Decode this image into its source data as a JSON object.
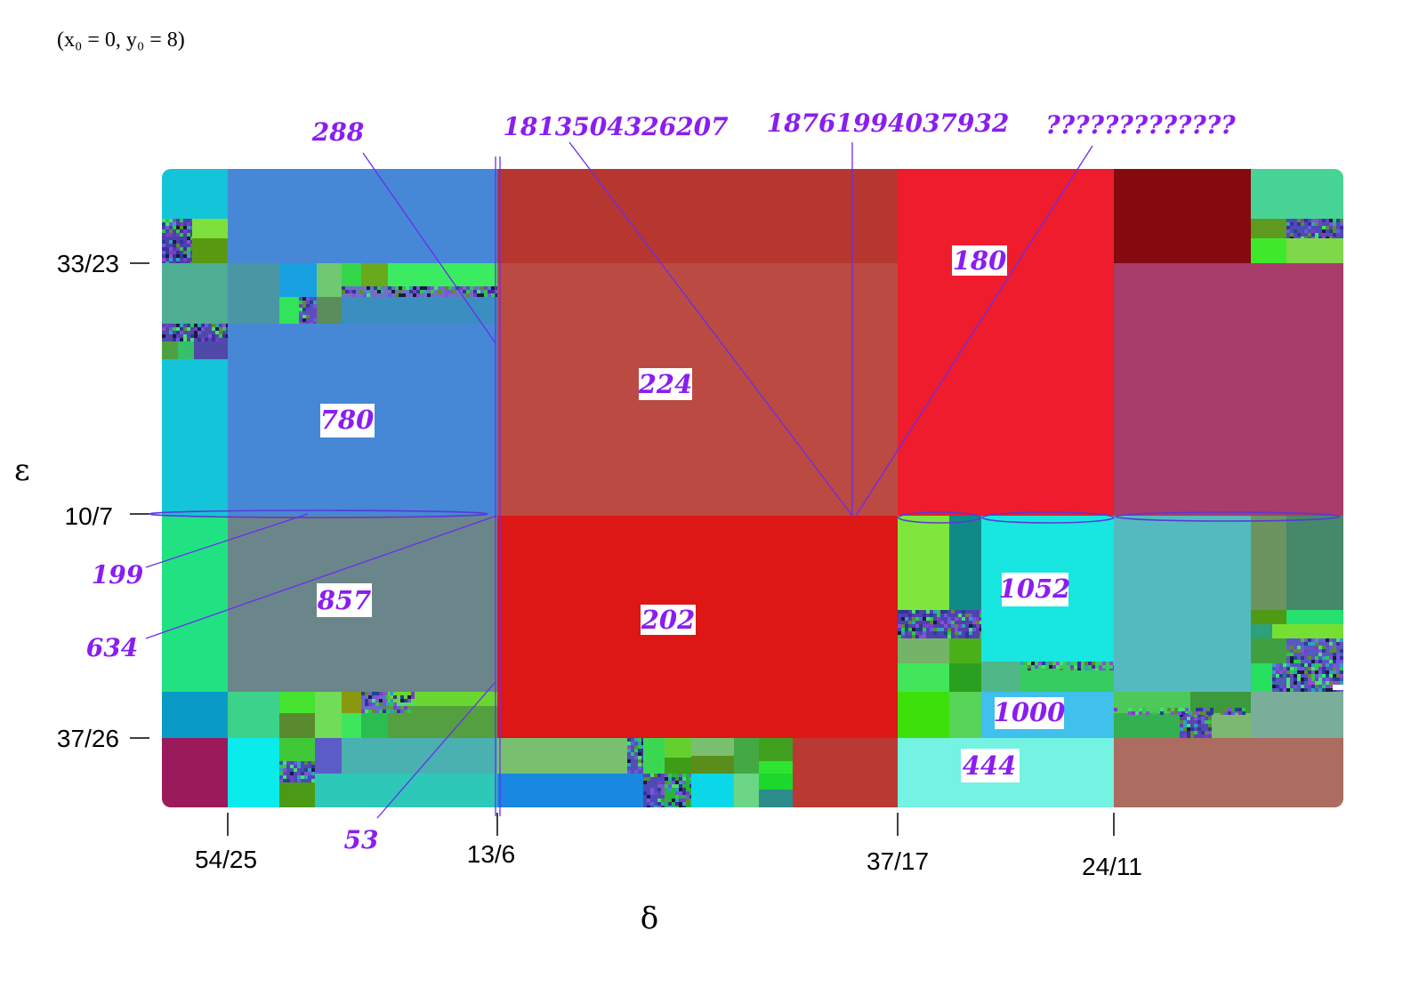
{
  "condition": "(x₀ = 0, y₀ = 8)",
  "axes": {
    "x_label": "δ",
    "y_label": "ε",
    "x_ticks": [
      "54/25",
      "13/6",
      "37/17",
      "24/11"
    ],
    "y_ticks": [
      "33/23",
      "10/7",
      "37/26"
    ]
  },
  "region_labels": [
    "780",
    "224",
    "180",
    "857",
    "202",
    "1052",
    "1000",
    "444"
  ],
  "annotations": [
    "288",
    "1813504326207",
    "18761994037932",
    "?????????????",
    "199",
    "634",
    "53"
  ],
  "colors": {
    "annotation": "#8a1ef0",
    "blue_region": "#4688d6",
    "red_region": "#dd1616",
    "brick_region": "#bb4a42",
    "crimson_region": "#ee1c2c",
    "cyan_region": "#18e6e0",
    "grey_region": "#6b868a"
  }
}
